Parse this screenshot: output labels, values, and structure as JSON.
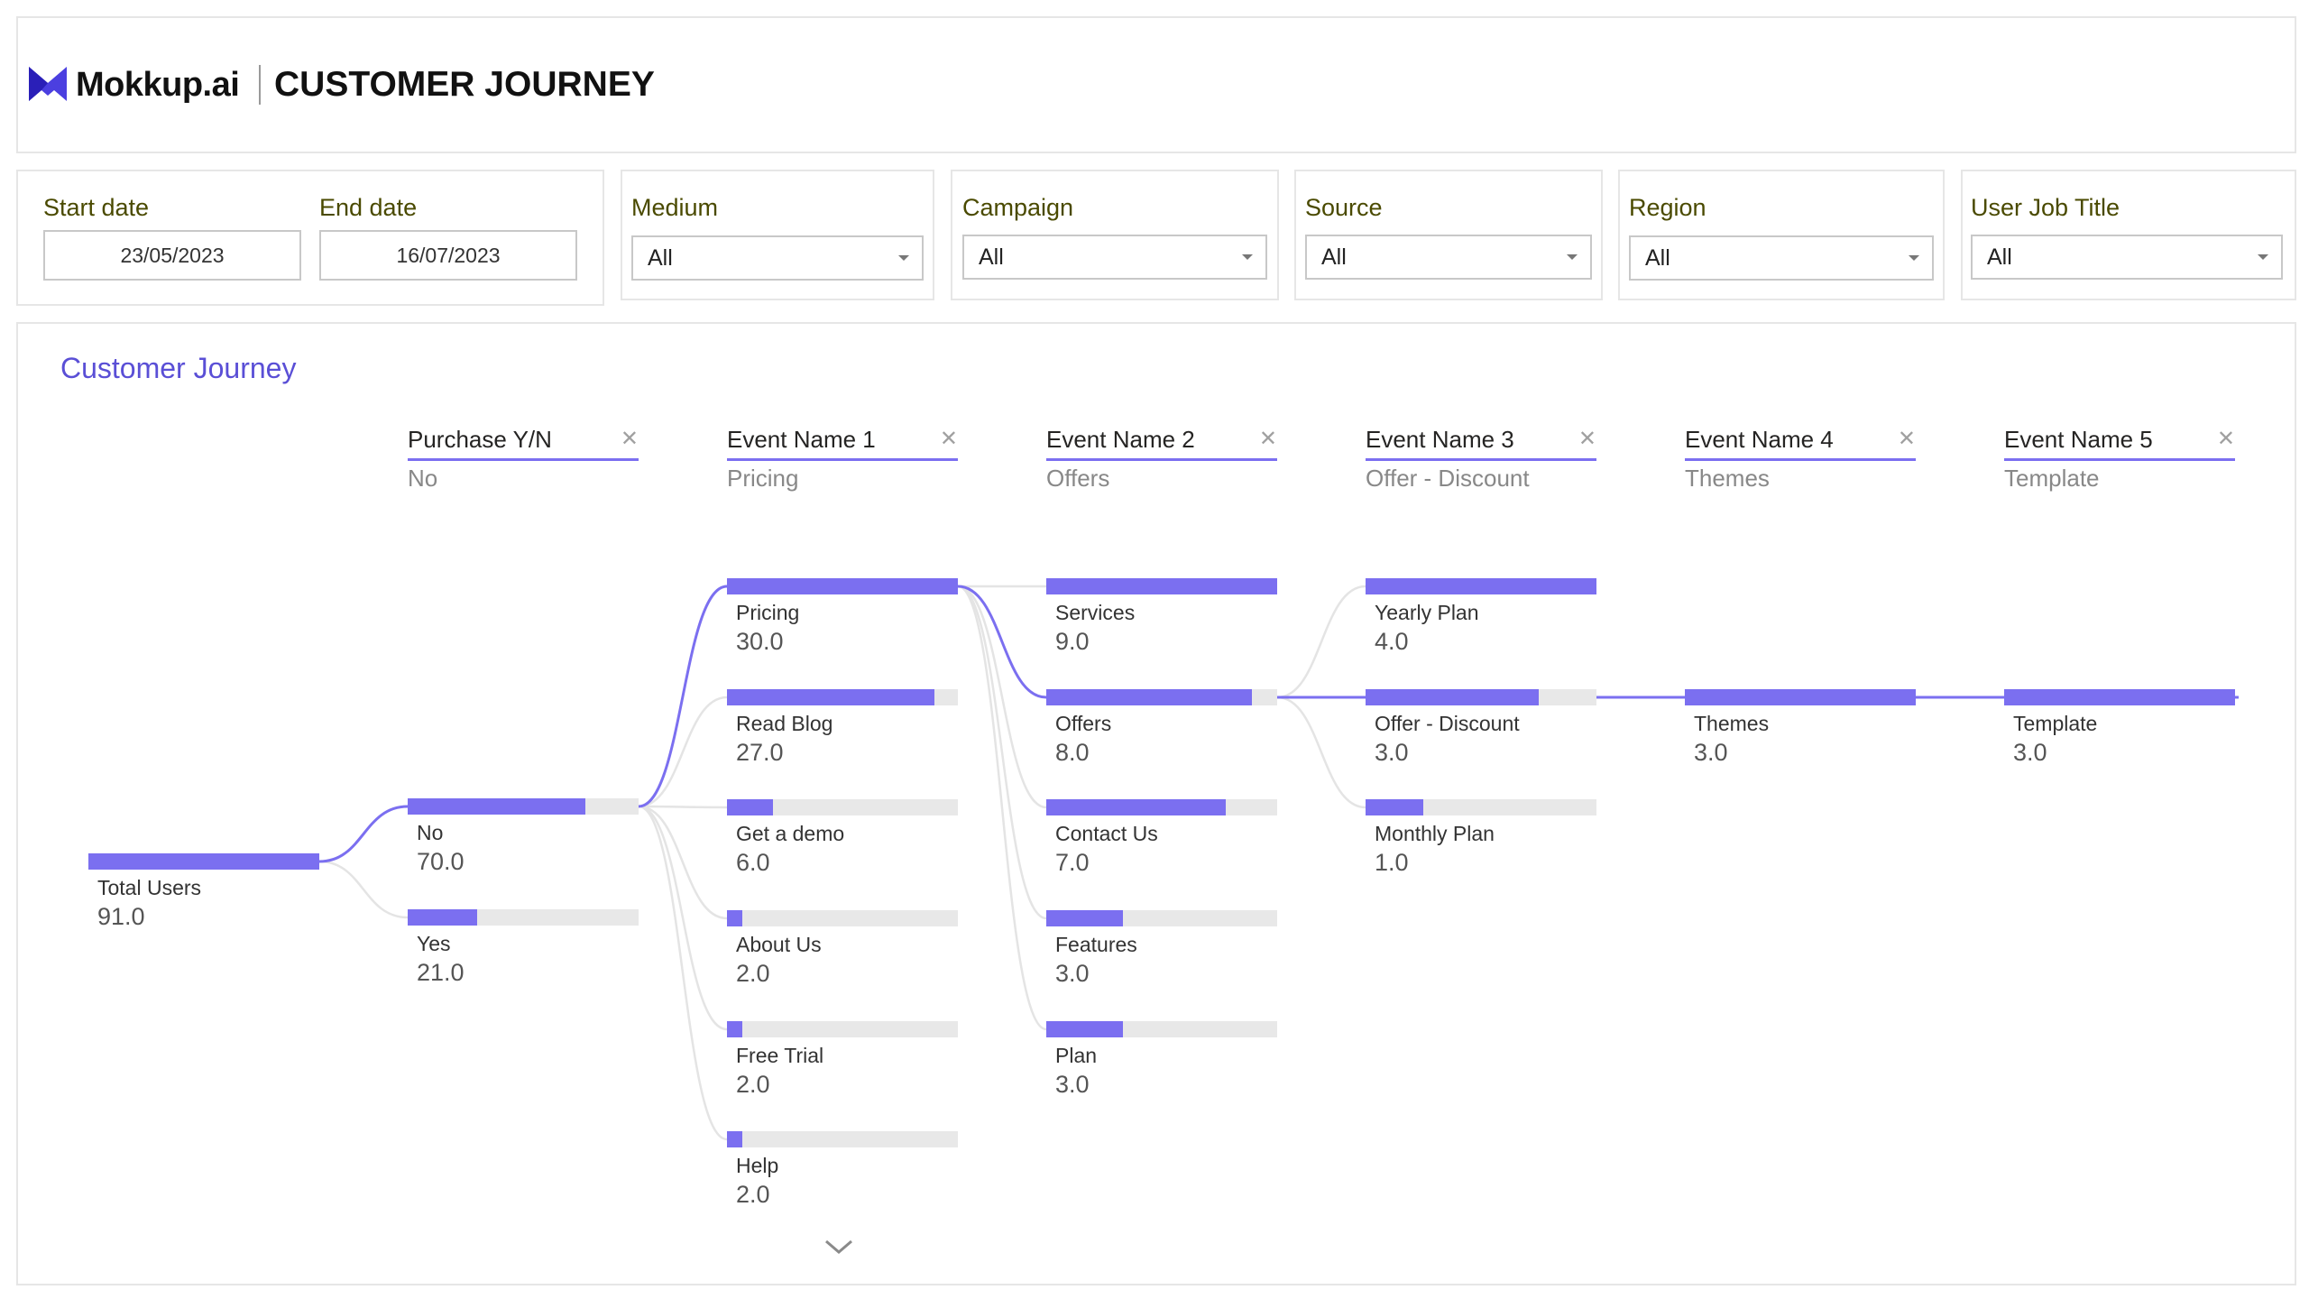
{
  "header": {
    "brand": "Mokkup.ai",
    "title": "CUSTOMER JOURNEY"
  },
  "filters": {
    "start_date_label": "Start date",
    "start_date_value": "23/05/2023",
    "end_date_label": "End date",
    "end_date_value": "16/07/2023",
    "dropdowns": [
      {
        "label": "Medium",
        "value": "All"
      },
      {
        "label": "Campaign",
        "value": "All"
      },
      {
        "label": "Source",
        "value": "All"
      },
      {
        "label": "Region",
        "value": "All"
      },
      {
        "label": "User Job Title",
        "value": "All"
      }
    ]
  },
  "visual": {
    "title": "Customer Journey",
    "levels": [
      {
        "name": "Purchase Y/N",
        "selected": "No"
      },
      {
        "name": "Event Name 1",
        "selected": "Pricing"
      },
      {
        "name": "Event Name 2",
        "selected": "Offers"
      },
      {
        "name": "Event Name 3",
        "selected": "Offer - Discount"
      },
      {
        "name": "Event Name 4",
        "selected": "Themes"
      },
      {
        "name": "Event Name 5",
        "selected": "Template"
      }
    ],
    "close_icon": "close-icon",
    "root": {
      "label": "Total Users",
      "value": "91.0"
    },
    "nodes": [
      [
        {
          "label": "No",
          "value": "70.0"
        },
        {
          "label": "Yes",
          "value": "21.0"
        }
      ],
      [
        {
          "label": "Pricing",
          "value": "30.0"
        },
        {
          "label": "Read Blog",
          "value": "27.0"
        },
        {
          "label": "Get a demo",
          "value": "6.0"
        },
        {
          "label": "About Us",
          "value": "2.0"
        },
        {
          "label": "Free Trial",
          "value": "2.0"
        },
        {
          "label": "Help",
          "value": "2.0"
        }
      ],
      [
        {
          "label": "Services",
          "value": "9.0"
        },
        {
          "label": "Offers",
          "value": "8.0"
        },
        {
          "label": "Contact Us",
          "value": "7.0"
        },
        {
          "label": "Features",
          "value": "3.0"
        },
        {
          "label": "Plan",
          "value": "3.0"
        }
      ],
      [
        {
          "label": "Yearly Plan",
          "value": "4.0"
        },
        {
          "label": "Offer - Discount",
          "value": "3.0"
        },
        {
          "label": "Monthly Plan",
          "value": "1.0"
        }
      ],
      [
        {
          "label": "Themes",
          "value": "3.0"
        }
      ],
      [
        {
          "label": "Template",
          "value": "3.0"
        }
      ]
    ],
    "expand_icon": "chevron-down-icon"
  },
  "colors": {
    "accent": "#7b6ff0",
    "title": "#5a4fd6",
    "track": "#e8e8e8",
    "label": "#4a4a00"
  }
}
